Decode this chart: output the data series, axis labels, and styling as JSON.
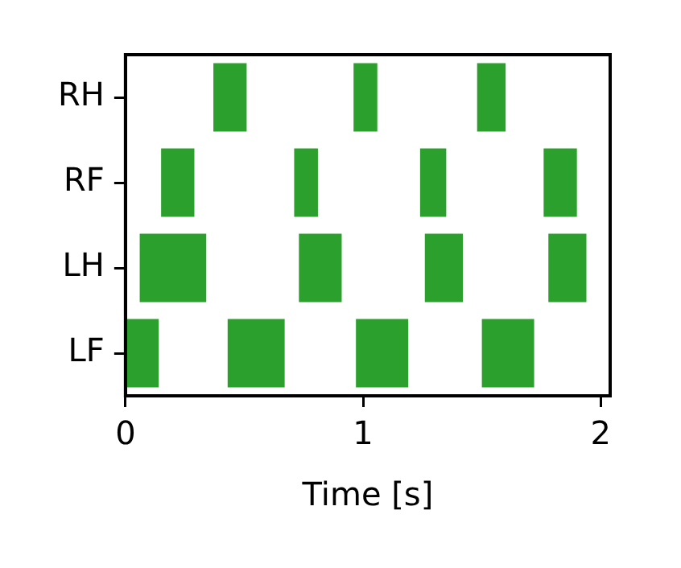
{
  "chart_data": {
    "type": "bar",
    "orientation": "horizontal",
    "xlabel": "Time [s]",
    "categories": [
      "RH",
      "RF",
      "LH",
      "LF"
    ],
    "series": [
      {
        "color": "#2ca02c",
        "base": [
          0.37,
          0.15,
          0.06,
          0
        ],
        "values": [
          0.14,
          0.14,
          0.28,
          0.14
        ]
      },
      {
        "color": "#2ca02c",
        "base": [
          0.96,
          0.71,
          0.73,
          0.43
        ],
        "values": [
          0.1,
          0.1,
          0.18,
          0.24
        ]
      },
      {
        "color": "#2ca02c",
        "base": [
          1.48,
          1.24,
          1.26,
          0.97
        ],
        "values": [
          0.12,
          0.11,
          0.16,
          0.22
        ]
      },
      {
        "color": "#2ca02c",
        "base": [
          null,
          1.76,
          1.78,
          1.5
        ],
        "values": [
          null,
          0.14,
          0.16,
          0.22
        ]
      }
    ],
    "xlim": [
      0,
      2.04
    ],
    "xticks": [
      0,
      1,
      2
    ],
    "grid": false,
    "legend": false
  }
}
